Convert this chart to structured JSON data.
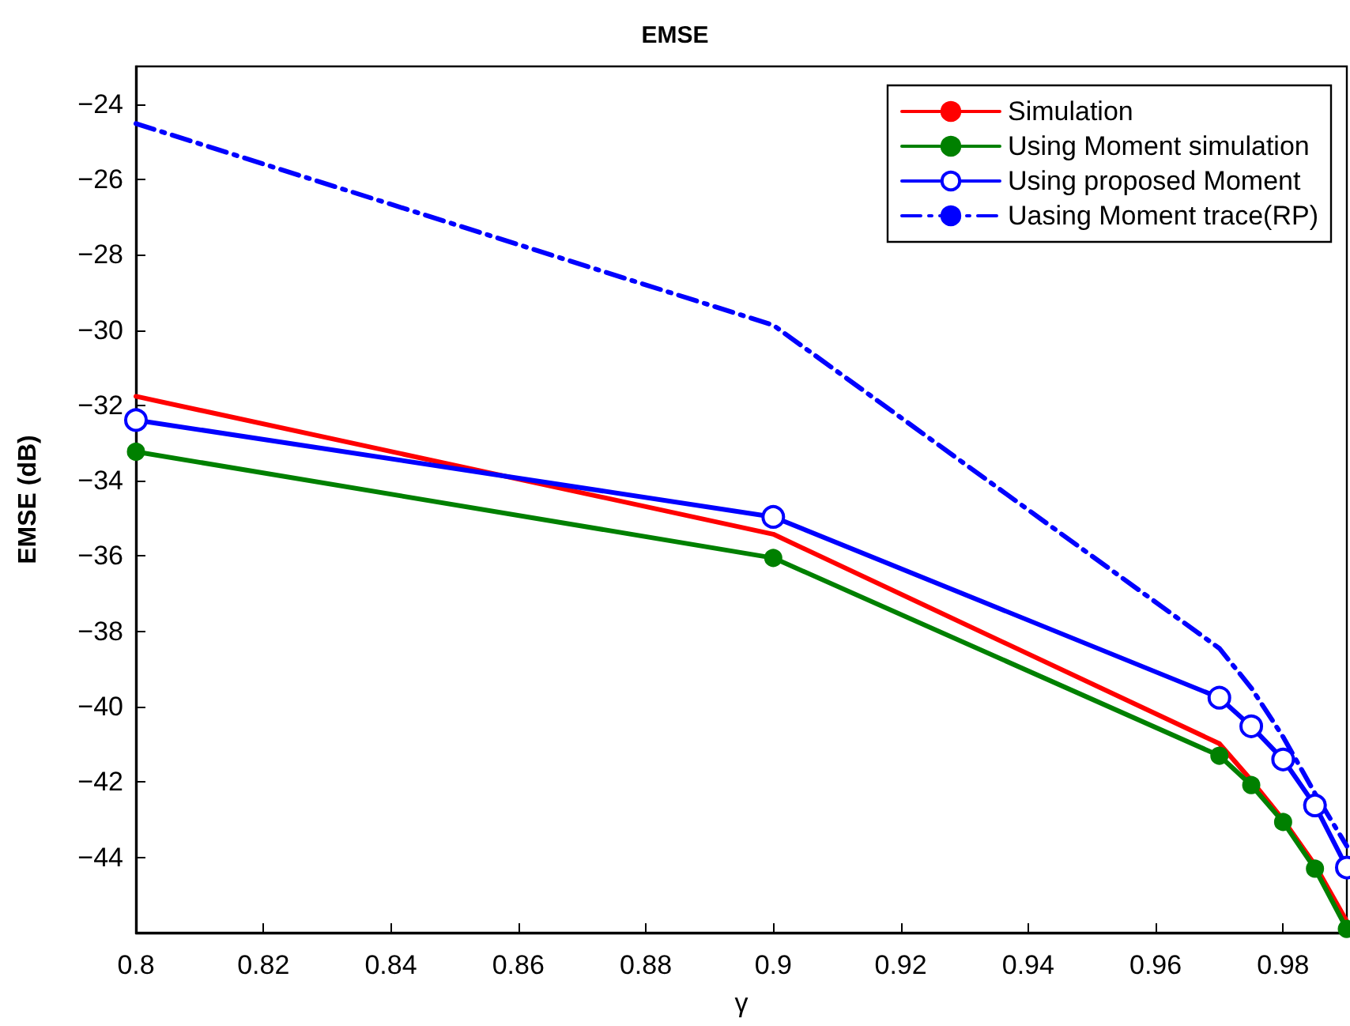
{
  "chart_data": {
    "type": "line",
    "title": "EMSE",
    "xlabel": "γ",
    "ylabel": "EMSE (dB)",
    "x": [
      0.8,
      0.9,
      0.97,
      0.975,
      0.98,
      0.985,
      0.99
    ],
    "xlim": [
      0.8,
      0.99
    ],
    "xticks": [
      0.8,
      0.82,
      0.84,
      0.86,
      0.88,
      0.9,
      0.92,
      0.94,
      0.96,
      0.98
    ],
    "ylim": [
      -46,
      -23
    ],
    "yticks": [
      -44,
      -42,
      -40,
      -38,
      -36,
      -34,
      -32,
      -30,
      -28,
      -26,
      -24
    ],
    "grid": false,
    "legend": "top right",
    "series": [
      {
        "name": "Simulation",
        "color": "#ff0000",
        "marker": "none",
        "line_style": "solid",
        "values": [
          -31.76,
          -35.42,
          -40.98,
          -41.95,
          -43.0,
          -44.2,
          -45.7
        ]
      },
      {
        "name": "Using Moment simulation",
        "color": "#008000",
        "marker": "circle",
        "line_style": "solid",
        "values": [
          -33.23,
          -36.05,
          -41.3,
          -42.08,
          -43.06,
          -44.3,
          -45.9
        ]
      },
      {
        "name": "Using proposed Moment",
        "color": "#0000ff",
        "marker": "circle",
        "line_style": "solid",
        "values": [
          -32.39,
          -34.96,
          -39.76,
          -40.52,
          -41.4,
          -42.62,
          -44.27
        ]
      },
      {
        "name": "Uasing Moment trace(RP)",
        "color": "#0000ff",
        "marker": "none",
        "line_style": "dashdot",
        "values": [
          -24.52,
          -29.87,
          -38.45,
          -39.5,
          -40.8,
          -42.3,
          -43.7
        ]
      }
    ]
  }
}
